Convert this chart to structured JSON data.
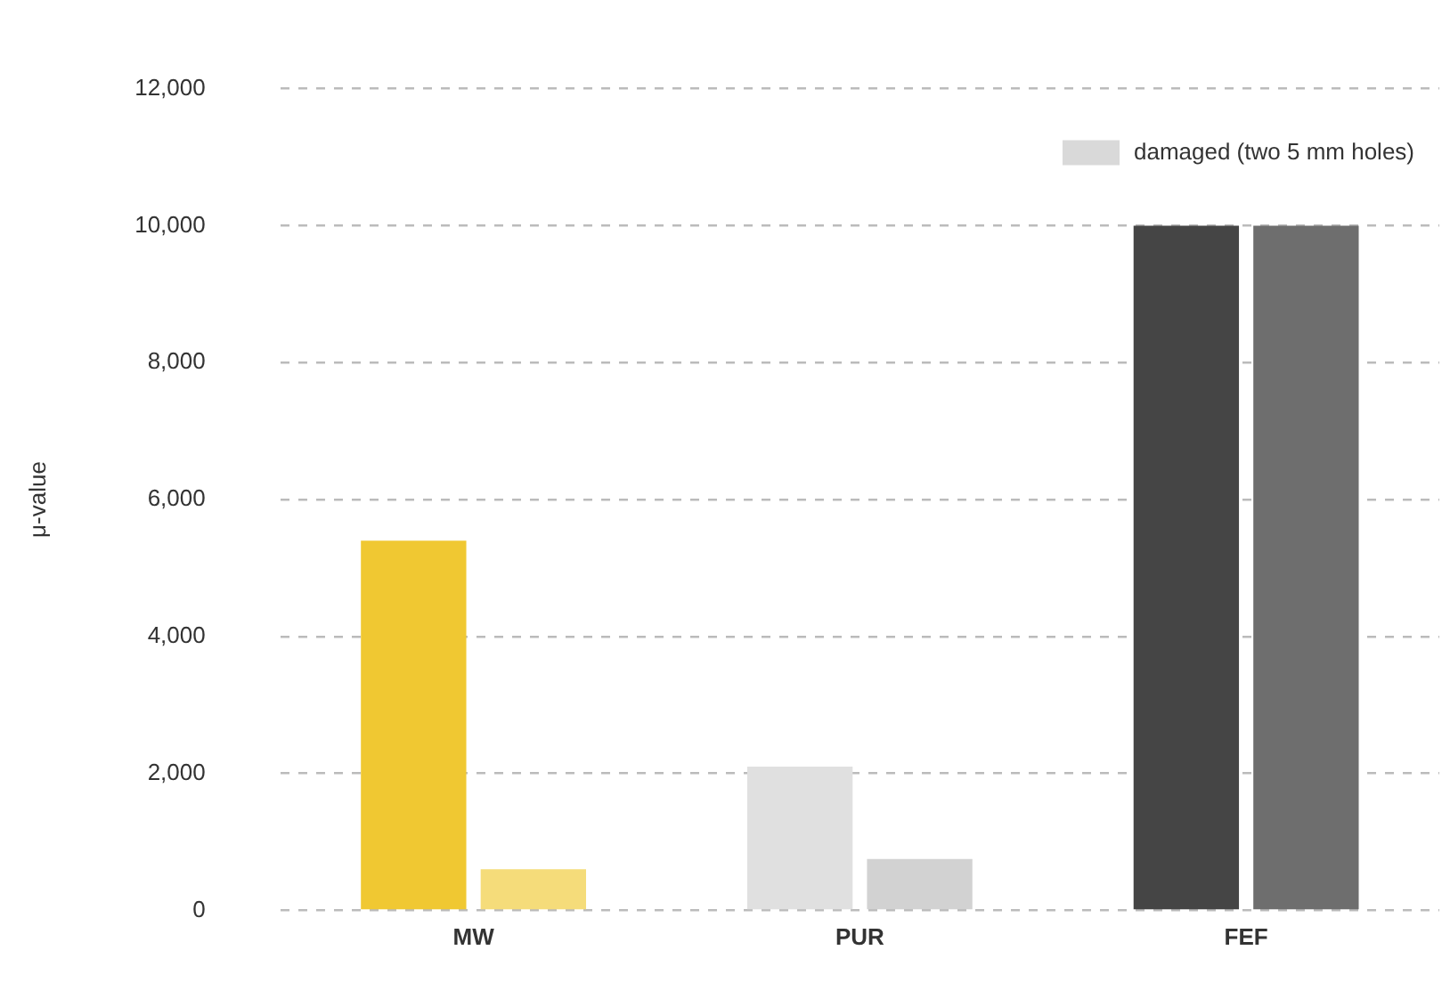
{
  "chart_data": {
    "type": "bar",
    "ylabel": "μ-value",
    "categories": [
      "MW",
      "PUR",
      "FEF"
    ],
    "series": [
      {
        "colors": [
          "#f0c832",
          "#e0e0e0",
          "#454545"
        ],
        "values": [
          5400,
          2100,
          10000
        ]
      },
      {
        "name": "damaged (two 5 mm holes)",
        "color": "#d9d9d9",
        "colors": [
          "#f5dc7a",
          "#d2d2d2",
          "#6e6e6e"
        ],
        "values": [
          600,
          750,
          10000
        ]
      }
    ],
    "ylim": [
      0,
      12000
    ],
    "yticks": [
      {
        "value": 0,
        "label": "0"
      },
      {
        "value": 2000,
        "label": "2,000"
      },
      {
        "value": 4000,
        "label": "4,000"
      },
      {
        "value": 6000,
        "label": "6,000"
      },
      {
        "value": 8000,
        "label": "8,000"
      },
      {
        "value": 10000,
        "label": "10,000"
      },
      {
        "value": 12000,
        "label": "12,000"
      }
    ],
    "grid": "y",
    "legend": "top right"
  }
}
